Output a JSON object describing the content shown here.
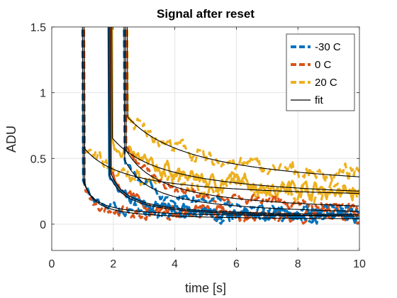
{
  "chart_data": {
    "type": "line",
    "title": "Signal after reset",
    "xlabel": "time [s]",
    "ylabel": "ADU",
    "xlim": [
      0,
      10
    ],
    "ylim": [
      -0.2,
      1.5
    ],
    "xticks": [
      0,
      2,
      4,
      6,
      8,
      10
    ],
    "yticks": [
      0,
      0.5,
      1,
      1.5
    ],
    "xtick_labels": [
      "0",
      "2",
      "4",
      "6",
      "8",
      "10"
    ],
    "ytick_labels": [
      "0",
      "0.5",
      "1",
      "1.5"
    ],
    "grid": true,
    "legend_position": "top-right",
    "colors": {
      "-30 C": "#0072BD",
      "0 C": "#D95319",
      "20 C": "#EDB120",
      "fit": "#000000"
    },
    "series": [
      {
        "name": "-30 C",
        "style": "dashed",
        "curves": [
          {
            "t0": 1.0,
            "a": 0.3,
            "tau": 0.35,
            "b": 0.05
          },
          {
            "t0": 1.85,
            "a": 0.35,
            "tau": 0.55,
            "b": 0.04
          },
          {
            "t0": 2.35,
            "a": 0.45,
            "tau": 0.9,
            "b": 0.05
          }
        ]
      },
      {
        "name": "0 C",
        "style": "dashed",
        "curves": [
          {
            "t0": 1.05,
            "a": 0.3,
            "tau": 0.35,
            "b": 0.03
          },
          {
            "t0": 1.9,
            "a": 0.35,
            "tau": 0.55,
            "b": 0.05
          },
          {
            "t0": 2.4,
            "a": 0.5,
            "tau": 1.2,
            "b": 0.07
          }
        ]
      },
      {
        "name": "20 C",
        "style": "dashed",
        "curves": [
          {
            "t0": 1.05,
            "a": 0.4,
            "tau": 1.4,
            "b": 0.18
          },
          {
            "t0": 1.95,
            "a": 0.5,
            "tau": 1.8,
            "b": 0.16
          },
          {
            "t0": 2.45,
            "a": 0.6,
            "tau": 2.3,
            "b": 0.22
          }
        ]
      }
    ],
    "fit": {
      "name": "fit",
      "style": "solid"
    },
    "legend": [
      "-30 C",
      "0 C",
      "20 C",
      "fit"
    ]
  }
}
